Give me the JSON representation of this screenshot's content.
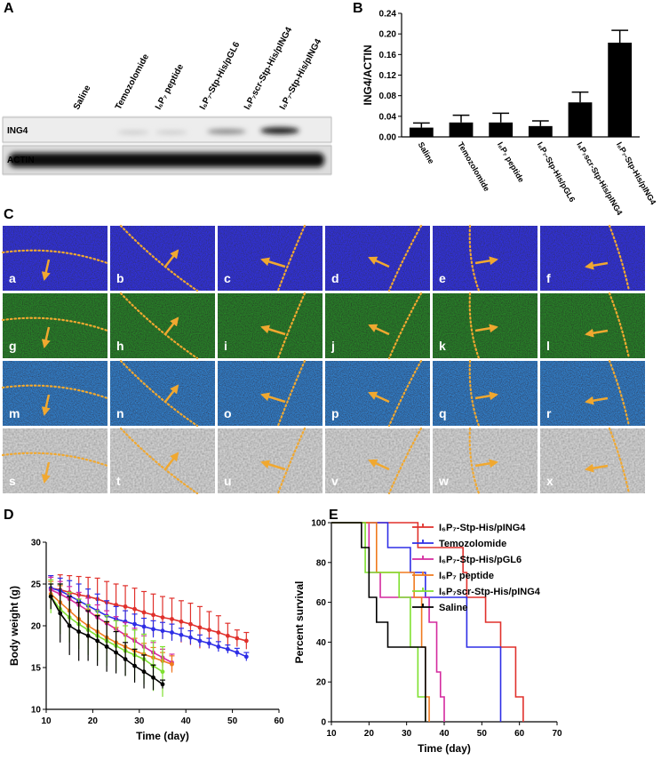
{
  "panel_labels": [
    "A",
    "B",
    "C",
    "D",
    "E"
  ],
  "blot": {
    "lanes": [
      "Saline",
      "Temozolomide",
      "I₆P₇ peptide",
      "I₆P₇-Stp-His/pGL6",
      "I₆P₇scr-Stp-His/pING4",
      "I₆P₇-Stp-His/pING4"
    ],
    "rows": [
      "ING4",
      "ACTIN"
    ]
  },
  "micrographs": {
    "labels": [
      "a",
      "b",
      "c",
      "d",
      "e",
      "f",
      "g",
      "h",
      "i",
      "j",
      "k",
      "l",
      "m",
      "n",
      "o",
      "p",
      "q",
      "r",
      "s",
      "t",
      "u",
      "v",
      "w",
      "x"
    ]
  },
  "chart_data": [
    {
      "type": "bar",
      "y_label": "ING4/ACTIN",
      "categories": [
        "Saline",
        "Temozolomide",
        "I₆P₇ peptide",
        "I₆P₇-Stp-His/pGL6",
        "I₆P₇scr-Stp-His/pING4",
        "I₆P₇-Stp-His/pING4"
      ],
      "values": [
        0.018,
        0.028,
        0.028,
        0.021,
        0.067,
        0.183
      ],
      "errors": [
        0.009,
        0.014,
        0.018,
        0.01,
        0.02,
        0.024
      ],
      "color": "#000000",
      "ylim": [
        0,
        0.24
      ],
      "yticks": [
        {
          "value": 0,
          "label": "0.00"
        },
        {
          "value": 0.04,
          "label": "0.04"
        },
        {
          "value": 0.08,
          "label": "0.08"
        },
        {
          "value": 0.12,
          "label": "0.12"
        },
        {
          "value": 0.16,
          "label": "0.16"
        },
        {
          "value": 0.2,
          "label": "0.20"
        },
        {
          "value": 0.24,
          "label": "0.24"
        }
      ]
    },
    {
      "type": "line",
      "x_label": "Time (day)",
      "y_label": "Body weight (g)",
      "x": [
        11,
        13,
        15,
        17,
        19,
        21,
        23,
        25,
        27,
        29,
        31,
        33,
        35,
        37,
        39,
        41,
        43,
        45,
        47,
        49,
        51,
        53
      ],
      "series": [
        {
          "color": "#e0312c",
          "values": [
            24.5,
            24.3,
            24,
            23.7,
            23.5,
            23.2,
            22.8,
            22.5,
            22.3,
            22,
            21.6,
            21.3,
            21,
            20.8,
            20.5,
            20.2,
            19.8,
            19.5,
            19.2,
            18.8,
            18.5,
            18.2
          ],
          "errors": [
            1.5,
            1.8,
            2,
            2.2,
            2.3,
            2.5,
            2.5,
            2.5,
            2.5,
            2.5,
            2.5,
            2.5,
            2.5,
            2.5,
            2.5,
            2.5,
            2.5,
            2.2,
            2,
            1.5,
            1,
            1
          ]
        },
        {
          "color": "#2e2ee6",
          "values": [
            24.5,
            24.2,
            23.6,
            23,
            22.4,
            21.8,
            21.2,
            20.8,
            20.5,
            20.2,
            19.9,
            19.6,
            19.4,
            19.2,
            18.9,
            18.6,
            18.2,
            17.9,
            17.5,
            17.2,
            16.8,
            16.3
          ],
          "errors": [
            1.5,
            1.5,
            1.8,
            2,
            2,
            2,
            1.8,
            1.5,
            1.3,
            1.2,
            1,
            1,
            1,
            1,
            0.8,
            0.8,
            0.7,
            0.6,
            0.6,
            0.5,
            0.5,
            0.5
          ]
        },
        {
          "color": "#d42a9e",
          "values": [
            24.3,
            23.8,
            23.2,
            22.5,
            21.8,
            21,
            20.3,
            19.6,
            18.9,
            18.2,
            17.5,
            16.8,
            16.2,
            15.6,
            null,
            null,
            null,
            null,
            null,
            null,
            null,
            null
          ],
          "errors": [
            1.5,
            1.5,
            1.5,
            1.5,
            1.5,
            1.5,
            1.5,
            1.5,
            1.5,
            1.5,
            1.3,
            1.2,
            1,
            1,
            null,
            null,
            null,
            null,
            null,
            null,
            null,
            null
          ]
        },
        {
          "color": "#f07a1e",
          "values": [
            23.8,
            22.8,
            21.8,
            20.8,
            20,
            19.3,
            18.6,
            18,
            17.5,
            17,
            16.6,
            16.2,
            15.8,
            15.4,
            null,
            null,
            null,
            null,
            null,
            null,
            null,
            null
          ],
          "errors": [
            1.5,
            2,
            2,
            2,
            2,
            2,
            1.8,
            1.8,
            1.5,
            1.5,
            1.3,
            1.2,
            1,
            1,
            null,
            null,
            null,
            null,
            null,
            null,
            null,
            null
          ]
        },
        {
          "color": "#7fe030",
          "values": [
            23.5,
            22,
            21,
            20.2,
            19.5,
            18.8,
            18.2,
            17.6,
            17,
            16.5,
            16,
            15.2,
            14.5,
            null,
            null,
            null,
            null,
            null,
            null,
            null,
            null,
            null
          ],
          "errors": [
            2,
            3,
            3,
            3,
            3,
            3,
            3,
            3,
            3,
            3,
            3,
            3,
            3,
            null,
            null,
            null,
            null,
            null,
            null,
            null,
            null,
            null
          ]
        },
        {
          "color": "#000000",
          "values": [
            23.5,
            21.5,
            20,
            19.3,
            18.8,
            18.2,
            17.5,
            16.8,
            16,
            15.2,
            14.5,
            13.8,
            13,
            null,
            null,
            null,
            null,
            null,
            null,
            null,
            null,
            null
          ],
          "errors": [
            1.5,
            3.5,
            3.5,
            3.5,
            3,
            3,
            3,
            2.5,
            2,
            2,
            2,
            1.5,
            0.5,
            null,
            null,
            null,
            null,
            null,
            null,
            null,
            null,
            null
          ]
        }
      ],
      "xlim": [
        10,
        60
      ],
      "xticks": [
        10,
        20,
        30,
        40,
        50,
        60
      ],
      "ylim": [
        10,
        30
      ],
      "yticks": [
        10,
        15,
        20,
        25,
        30
      ]
    },
    {
      "type": "step",
      "x_label": "Time (day)",
      "y_label": "Percent survival",
      "legend": "upper right",
      "series": [
        {
          "name": "I₆P₇-Stp-His/pING4",
          "color": "#e0312c",
          "x": [
            10,
            33,
            45,
            46,
            51,
            55,
            59,
            61
          ],
          "values": [
            100,
            87.5,
            75,
            62.5,
            50,
            37.5,
            12.5,
            0
          ]
        },
        {
          "name": "Temozolomide",
          "color": "#2e2ee6",
          "x": [
            10,
            25,
            31,
            35,
            46,
            55
          ],
          "values": [
            100,
            87.5,
            75,
            62.5,
            37.5,
            0
          ]
        },
        {
          "name": "I₆P₇-Stp-His/pGL6",
          "color": "#d42a9e",
          "x": [
            10,
            20,
            23,
            36,
            38,
            39,
            40
          ],
          "values": [
            100,
            75,
            62.5,
            50,
            25,
            12.5,
            0
          ]
        },
        {
          "name": "I₆P₇ peptide",
          "color": "#f07a1e",
          "x": [
            10,
            22,
            32,
            34,
            35,
            36
          ],
          "values": [
            100,
            75,
            62.5,
            37.5,
            12.5,
            0
          ]
        },
        {
          "name": "I₆P₇scr-Stp-His/pING4",
          "color": "#7fe030",
          "x": [
            10,
            19,
            28,
            31,
            33,
            35
          ],
          "values": [
            100,
            75,
            62.5,
            37.5,
            12.5,
            0
          ]
        },
        {
          "name": "Saline",
          "color": "#000000",
          "x": [
            10,
            18,
            20,
            22,
            25,
            35
          ],
          "values": [
            100,
            87.5,
            62.5,
            50,
            37.5,
            0
          ]
        }
      ],
      "xlim": [
        10,
        70
      ],
      "xticks": [
        10,
        20,
        30,
        40,
        50,
        60,
        70
      ],
      "ylim": [
        0,
        100
      ],
      "yticks": [
        0,
        20,
        40,
        60,
        80,
        100
      ]
    }
  ]
}
